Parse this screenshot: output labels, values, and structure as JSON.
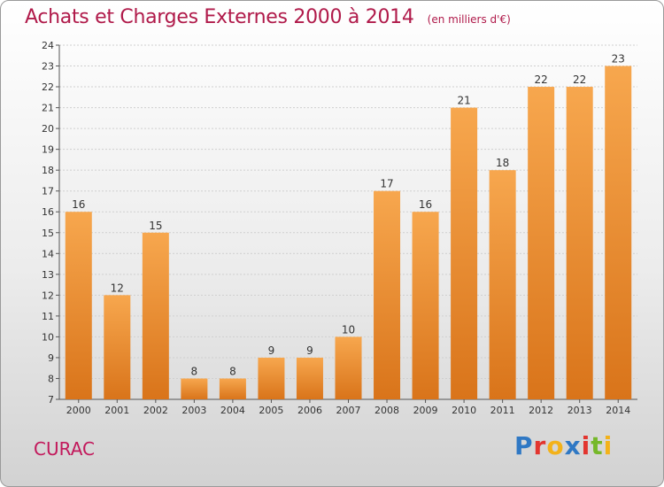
{
  "header": {
    "title": "Achats et Charges Externes 2000 à 2014",
    "subtitle": "(en milliers d'€)"
  },
  "footer": {
    "place": "CURAC",
    "logo_letters": [
      {
        "char": "P",
        "color": "#2f78c4"
      },
      {
        "char": "r",
        "color": "#e2352f"
      },
      {
        "char": "o",
        "color": "#f3b21a"
      },
      {
        "char": "x",
        "color": "#2f78c4"
      },
      {
        "char": "i",
        "color": "#e2352f"
      },
      {
        "char": "t",
        "color": "#76b82a"
      },
      {
        "char": "i",
        "color": "#f3b21a"
      }
    ]
  },
  "colors": {
    "bar_light": "#f7a74e",
    "bar_dark": "#d9741a",
    "title": "#b01a4a",
    "grid": "#cfcfcf"
  },
  "chart_data": {
    "type": "bar",
    "categories": [
      "2000",
      "2001",
      "2002",
      "2003",
      "2004",
      "2005",
      "2006",
      "2007",
      "2008",
      "2009",
      "2010",
      "2011",
      "2012",
      "2013",
      "2014"
    ],
    "values": [
      16,
      12,
      15,
      8,
      8,
      9,
      9,
      10,
      17,
      16,
      21,
      18,
      22,
      22,
      23
    ],
    "ylim": [
      7,
      24
    ],
    "yticks": [
      7,
      8,
      9,
      10,
      11,
      12,
      13,
      14,
      15,
      16,
      17,
      18,
      19,
      20,
      21,
      22,
      23,
      24
    ],
    "grid": true,
    "title": "Achats et Charges Externes 2000 à 2014",
    "xlabel": "",
    "ylabel": ""
  }
}
